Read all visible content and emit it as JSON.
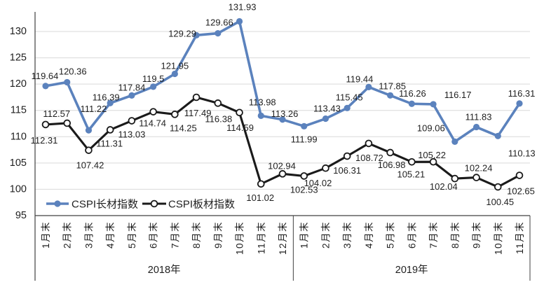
{
  "chart_data": {
    "type": "line",
    "title": "",
    "x_axis": {
      "groups": [
        {
          "label": "2018年",
          "months": [
            "1月末",
            "2月末",
            "3月末",
            "4月末",
            "5月末",
            "6月末",
            "7月末",
            "8月末",
            "9月末",
            "10月末",
            "11月末",
            "12月末"
          ]
        },
        {
          "label": "2019年",
          "months": [
            "1月末",
            "2月末",
            "3月末",
            "4月末",
            "5月末",
            "6月末",
            "7月末",
            "8月末",
            "9月末",
            "10月末",
            "11月末"
          ]
        }
      ]
    },
    "y_axis": {
      "min": 95,
      "max": 132.5,
      "ticks": [
        95,
        100,
        105,
        110,
        115,
        120,
        125,
        130
      ]
    },
    "grid": true,
    "legend_position": "inside-bottom-left",
    "series": [
      {
        "name": "CSPI长材指数",
        "color": "#5B82BD",
        "marker": "filled-circle",
        "values": [
          119.64,
          120.36,
          111.22,
          116.39,
          117.84,
          119.5,
          121.95,
          129.29,
          129.66,
          131.93,
          113.98,
          113.26,
          111.99,
          113.43,
          115.45,
          119.44,
          117.85,
          116.26,
          116.17,
          109.06,
          111.83,
          110.13,
          116.31
        ],
        "labels": [
          "119.64",
          "120.36",
          "111.22",
          "116.39",
          "117.84",
          "119.5",
          "121.95",
          "129.29",
          "129.66",
          "131.93",
          "113.98",
          "113.26",
          "111.99",
          "113.43",
          "115.45",
          "119.44",
          "117.85",
          "116.26",
          "116.17",
          "109.06",
          "111.83",
          "110.13",
          "116.31"
        ],
        "label_offsets": [
          [
            -1,
            -10
          ],
          [
            8,
            -11
          ],
          [
            7,
            -26
          ],
          [
            -6,
            -4
          ],
          [
            0,
            -7
          ],
          [
            0,
            -7
          ],
          [
            0,
            -7
          ],
          [
            -20,
            2
          ],
          [
            2,
            -11
          ],
          [
            4,
            -16
          ],
          [
            2,
            -15
          ],
          [
            3,
            -4
          ],
          [
            0,
            23
          ],
          [
            2,
            -10
          ],
          [
            3,
            -11
          ],
          [
            -13,
            -7
          ],
          [
            3,
            -9
          ],
          [
            1,
            -10
          ],
          [
            35,
            -9
          ],
          [
            -34,
            -15
          ],
          [
            3,
            -10
          ],
          [
            34,
            29
          ],
          [
            3,
            -10
          ]
        ]
      },
      {
        "name": "CSPI板材指数",
        "color": "#1A1A1A",
        "marker": "open-circle",
        "values": [
          112.31,
          112.57,
          107.42,
          111.31,
          113.03,
          114.74,
          114.25,
          117.49,
          116.38,
          114.59,
          101.02,
          102.94,
          102.53,
          104.02,
          106.31,
          108.72,
          106.98,
          105.21,
          105.22,
          102.04,
          102.24,
          100.45,
          102.65
        ],
        "labels": [
          "112.31",
          "112.57",
          "107.42",
          "111.31",
          "113.03",
          "114.74",
          "114.25",
          "117.49",
          "116.38",
          "114.59",
          "101.02",
          "102.94",
          "102.53",
          "104.02",
          "106.31",
          "108.72",
          "106.98",
          "105.21",
          "105.22",
          "102.04",
          "102.24",
          "100.45",
          "102.65"
        ],
        "label_offsets": [
          [
            -2,
            27
          ],
          [
            -15,
            -9
          ],
          [
            2,
            26
          ],
          [
            -1,
            24
          ],
          [
            0,
            24
          ],
          [
            -1,
            21
          ],
          [
            12,
            24
          ],
          [
            2,
            27
          ],
          [
            1,
            27
          ],
          [
            1,
            26
          ],
          [
            -1,
            24
          ],
          [
            -1,
            -7
          ],
          [
            0,
            24
          ],
          [
            -11,
            26
          ],
          [
            0,
            25
          ],
          [
            1,
            25
          ],
          [
            2,
            22
          ],
          [
            -1,
            22
          ],
          [
            -2,
            -5
          ],
          [
            -16,
            16
          ],
          [
            3,
            -9
          ],
          [
            3,
            26
          ],
          [
            2,
            27
          ]
        ]
      }
    ],
    "colors": {
      "grid": "#D9D9D9",
      "axis": "#404040",
      "text": "#1F1F1F",
      "background": "#FFFFFF"
    }
  }
}
